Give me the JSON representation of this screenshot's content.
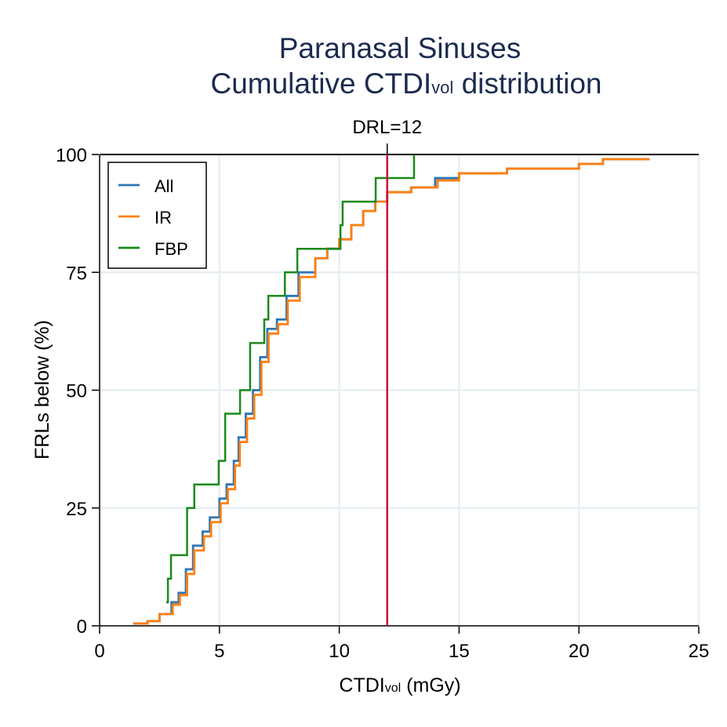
{
  "chart_data": {
    "type": "line",
    "title": "Paranasal Sinuses",
    "subtitle_main": "Cumulative CTDI",
    "subtitle_sub": "vol",
    "subtitle_tail": " distribution",
    "xlabel_main": "CTDI",
    "xlabel_sub": "vol",
    "xlabel_tail": " (mGy)",
    "ylabel": "FRLs below (%)",
    "xlim": [
      0,
      25
    ],
    "ylim": [
      0,
      100
    ],
    "xticks": [
      "0",
      "5",
      "10",
      "15",
      "20",
      "25"
    ],
    "yticks": [
      "0",
      "25",
      "50",
      "75",
      "100"
    ],
    "grid": true,
    "legend_placement": "top-left",
    "reference_line": {
      "x": 12,
      "label": "DRL=12",
      "color": "#c8103e"
    },
    "series": [
      {
        "name": "All",
        "color": "#2e75b6",
        "step": true,
        "points": [
          [
            1.4,
            0.5
          ],
          [
            2.0,
            1
          ],
          [
            2.5,
            2.5
          ],
          [
            3.0,
            5
          ],
          [
            3.3,
            7
          ],
          [
            3.6,
            12
          ],
          [
            3.9,
            17
          ],
          [
            4.3,
            20
          ],
          [
            4.6,
            23
          ],
          [
            5.0,
            27
          ],
          [
            5.3,
            30
          ],
          [
            5.6,
            35
          ],
          [
            5.8,
            40
          ],
          [
            6.1,
            45
          ],
          [
            6.4,
            50
          ],
          [
            6.7,
            57
          ],
          [
            7.0,
            63
          ],
          [
            7.4,
            65
          ],
          [
            7.8,
            70
          ],
          [
            8.3,
            75
          ],
          [
            9.0,
            78
          ],
          [
            9.5,
            80
          ],
          [
            10.0,
            82
          ],
          [
            10.5,
            85
          ],
          [
            11.0,
            88
          ],
          [
            11.5,
            90
          ],
          [
            12.0,
            92
          ],
          [
            13.0,
            93
          ],
          [
            14.0,
            95
          ],
          [
            15.0,
            96
          ],
          [
            17.0,
            97
          ],
          [
            20.0,
            98
          ],
          [
            21.0,
            99
          ],
          [
            22.9,
            99.2
          ]
        ]
      },
      {
        "name": "IR",
        "color": "#ff7f0e",
        "step": true,
        "points": [
          [
            1.4,
            0.5
          ],
          [
            2.0,
            1
          ],
          [
            2.5,
            2.5
          ],
          [
            3.05,
            4.5
          ],
          [
            3.35,
            6.5
          ],
          [
            3.65,
            11
          ],
          [
            3.95,
            16
          ],
          [
            4.35,
            19
          ],
          [
            4.65,
            22
          ],
          [
            5.05,
            26
          ],
          [
            5.35,
            29
          ],
          [
            5.65,
            34
          ],
          [
            5.85,
            39
          ],
          [
            6.15,
            44
          ],
          [
            6.45,
            49
          ],
          [
            6.75,
            56
          ],
          [
            7.05,
            62
          ],
          [
            7.45,
            64
          ],
          [
            7.85,
            69
          ],
          [
            8.35,
            74
          ],
          [
            9.0,
            78
          ],
          [
            9.5,
            80
          ],
          [
            10.0,
            82
          ],
          [
            10.5,
            85
          ],
          [
            11.0,
            88
          ],
          [
            11.5,
            90
          ],
          [
            12.0,
            92
          ],
          [
            13.0,
            93
          ],
          [
            14.1,
            94.5
          ],
          [
            15.0,
            96
          ],
          [
            17.0,
            97
          ],
          [
            20.0,
            98
          ],
          [
            21.0,
            99
          ],
          [
            22.9,
            99.2
          ]
        ]
      },
      {
        "name": "FBP",
        "color": "#1a8a1a",
        "step": true,
        "points": [
          [
            2.78,
            5
          ],
          [
            2.85,
            10
          ],
          [
            2.98,
            15
          ],
          [
            3.65,
            25
          ],
          [
            3.95,
            30
          ],
          [
            4.97,
            35
          ],
          [
            5.24,
            45
          ],
          [
            5.86,
            50
          ],
          [
            6.28,
            60
          ],
          [
            6.87,
            65
          ],
          [
            7.04,
            70
          ],
          [
            7.73,
            75
          ],
          [
            8.25,
            80
          ],
          [
            10.05,
            85
          ],
          [
            10.14,
            90
          ],
          [
            11.52,
            95
          ],
          [
            13.12,
            100
          ]
        ]
      }
    ]
  }
}
